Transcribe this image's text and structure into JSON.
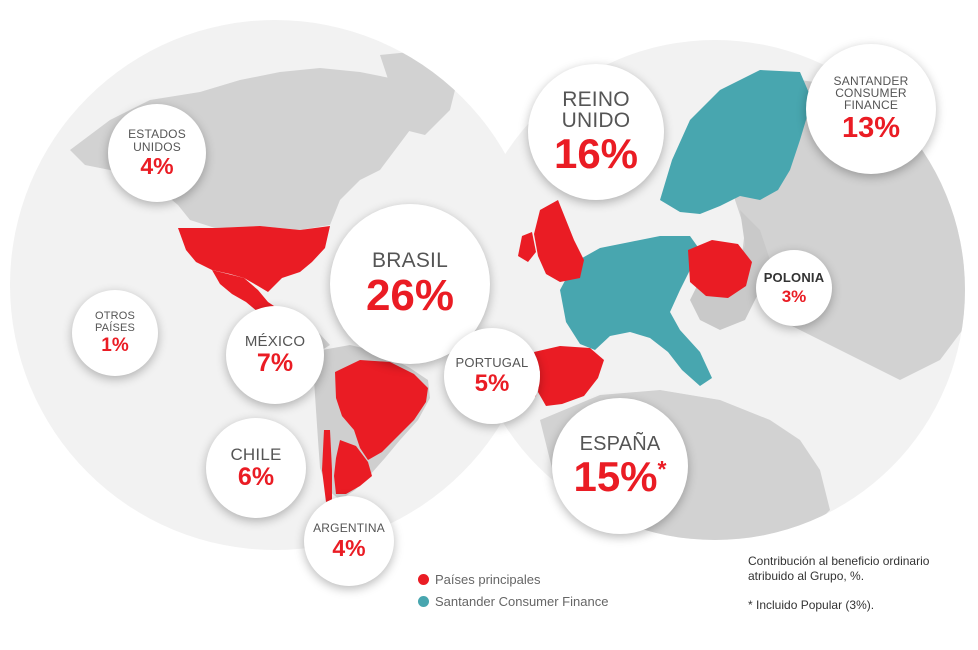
{
  "colors": {
    "principal": "#ea1c24",
    "scf": "#48a6af",
    "land": "#d2d2d2",
    "land_dark": "#bdbdbd",
    "globe": "#f2f2f2"
  },
  "countries": [
    {
      "id": "brasil",
      "name": "BRASIL",
      "pct": "26%"
    },
    {
      "id": "reino",
      "name": "REINO UNIDO",
      "pct": "16%"
    },
    {
      "id": "espana",
      "name": "ESPAÑA",
      "pct": "15%",
      "mark": "*"
    },
    {
      "id": "scf",
      "name": "SANTANDER CONSUMER FINANCE",
      "pct": "13%"
    },
    {
      "id": "mexico",
      "name": "MÉXICO",
      "pct": "7%"
    },
    {
      "id": "chile",
      "name": "CHILE",
      "pct": "6%"
    },
    {
      "id": "portugal",
      "name": "PORTUGAL",
      "pct": "5%"
    },
    {
      "id": "eeuu",
      "name": "ESTADOS UNIDOS",
      "pct": "4%"
    },
    {
      "id": "argentina",
      "name": "ARGENTINA",
      "pct": "4%"
    },
    {
      "id": "polonia",
      "name": "POLONIA",
      "pct": "3%"
    },
    {
      "id": "otros",
      "name": "OTROS PAÍSES",
      "pct": "1%"
    }
  ],
  "legend": [
    {
      "label": "Países principales",
      "color": "#ea1c24"
    },
    {
      "label": "Santander Consumer Finance",
      "color": "#48a6af"
    }
  ],
  "notes": {
    "caption": "Contribución al beneficio ordinario atribuido al  Grupo, %.",
    "footnote": "* Incluido Popular (3%)."
  }
}
